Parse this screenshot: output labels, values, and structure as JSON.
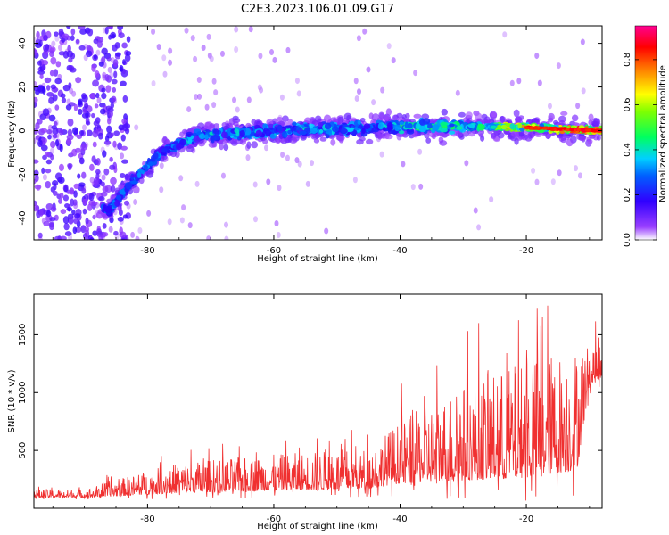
{
  "title": "C2E3.2023.106.01.09.G17",
  "chart_data": [
    {
      "type": "heatmap",
      "xlabel": "Height of straight line (km)",
      "ylabel": "Frequency (Hz)",
      "xlim": [
        -98,
        -8
      ],
      "ylim": [
        -50,
        48
      ],
      "xticks": [
        -80,
        -60,
        -40,
        -20
      ],
      "yticks": [
        -40,
        -20,
        0,
        20,
        40
      ],
      "colorbar": {
        "label": "Normalized spectral amplitude",
        "range": [
          0,
          0.95
        ],
        "ticks": [
          0.0,
          0.2,
          0.4,
          0.6,
          0.8
        ],
        "colormap": [
          "#ffffff",
          "#7a00ff",
          "#0000ff",
          "#00c8ff",
          "#00ff00",
          "#ffff00",
          "#ff8000",
          "#ff0000",
          "#ff0080"
        ]
      },
      "ridge": {
        "description_points": [
          {
            "x": -86,
            "y": -36
          },
          {
            "x": -82,
            "y": -22
          },
          {
            "x": -78,
            "y": -10
          },
          {
            "x": -72,
            "y": -2
          },
          {
            "x": -60,
            "y": 0
          },
          {
            "x": -40,
            "y": 2
          },
          {
            "x": -25,
            "y": 2
          },
          {
            "x": -8,
            "y": 0
          }
        ]
      }
    },
    {
      "type": "line",
      "xlabel": "Height of straight line (km)",
      "ylabel": "SNR (10 * v/v)",
      "xlim": [
        -98,
        -8
      ],
      "ylim": [
        0,
        1850
      ],
      "xticks": [
        -80,
        -60,
        -40,
        -20
      ],
      "yticks": [
        500,
        1000,
        1500
      ],
      "series": [
        {
          "color": "#f03030",
          "envelope": [
            {
              "x": -98,
              "mean": 110,
              "amp": 60
            },
            {
              "x": -90,
              "mean": 110,
              "amp": 60
            },
            {
              "x": -85,
              "mean": 140,
              "amp": 120
            },
            {
              "x": -75,
              "mean": 200,
              "amp": 220
            },
            {
              "x": -60,
              "mean": 230,
              "amp": 260
            },
            {
              "x": -45,
              "mean": 260,
              "amp": 300
            },
            {
              "x": -40,
              "mean": 350,
              "amp": 450
            },
            {
              "x": -30,
              "mean": 450,
              "amp": 700
            },
            {
              "x": -20,
              "mean": 520,
              "amp": 850
            },
            {
              "x": -12,
              "mean": 600,
              "amp": 900
            },
            {
              "x": -10,
              "mean": 1150,
              "amp": 300
            },
            {
              "x": -8,
              "mean": 1200,
              "amp": 250
            }
          ]
        }
      ]
    }
  ]
}
